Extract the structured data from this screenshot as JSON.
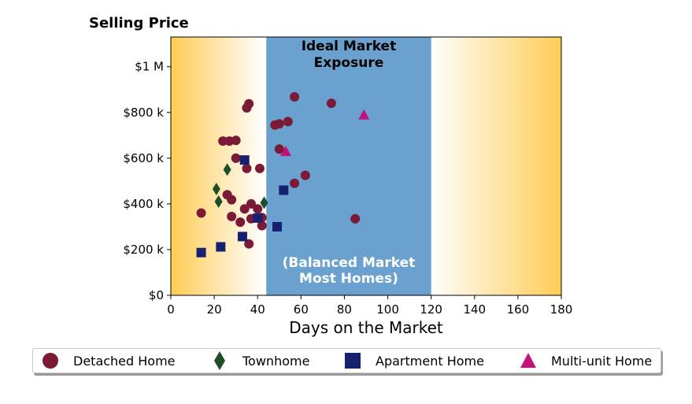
{
  "chart_data": {
    "type": "scatter",
    "title": "Selling Price",
    "xlabel": "Days on the Market",
    "ylabel": "",
    "xlim": [
      0,
      180
    ],
    "ylim": [
      0,
      1130000
    ],
    "xticks": [
      0,
      20,
      40,
      60,
      80,
      100,
      120,
      140,
      160,
      180
    ],
    "yticks": [
      {
        "value": 0,
        "label": "$0"
      },
      {
        "value": 200000,
        "label": "$200 k"
      },
      {
        "value": 400000,
        "label": "$400 k"
      },
      {
        "value": 600000,
        "label": "$600 k"
      },
      {
        "value": 800000,
        "label": "$800 k"
      },
      {
        "value": 1000000,
        "label": "$1 M"
      }
    ],
    "grid": false,
    "legend_position": "bottom",
    "background_gradient_color": "#ffcc55",
    "band": {
      "x_range": [
        44,
        120
      ],
      "color": "#6aa1cf",
      "label_top": [
        "Ideal Market",
        "Exposure"
      ],
      "label_bottom": [
        "(Balanced Market",
        "Most Homes)"
      ]
    },
    "series": [
      {
        "name": "Detached Home",
        "marker": "circle",
        "color": "#7b1a36",
        "points": [
          [
            14,
            360000
          ],
          [
            24,
            675000
          ],
          [
            27,
            675000
          ],
          [
            30,
            678000
          ],
          [
            35,
            820000
          ],
          [
            36,
            838000
          ],
          [
            26,
            440000
          ],
          [
            28,
            418000
          ],
          [
            28,
            345000
          ],
          [
            30,
            600000
          ],
          [
            35,
            555000
          ],
          [
            34,
            378000
          ],
          [
            32,
            320000
          ],
          [
            36,
            225000
          ],
          [
            37,
            400000
          ],
          [
            37,
            335000
          ],
          [
            40,
            378000
          ],
          [
            41,
            555000
          ],
          [
            42,
            340000
          ],
          [
            42,
            305000
          ],
          [
            48,
            745000
          ],
          [
            50,
            750000
          ],
          [
            50,
            640000
          ],
          [
            54,
            760000
          ],
          [
            57,
            868000
          ],
          [
            57,
            490000
          ],
          [
            62,
            525000
          ],
          [
            74,
            840000
          ],
          [
            85,
            335000
          ]
        ]
      },
      {
        "name": "Townhome",
        "marker": "diamond",
        "color": "#1f4e2b",
        "points": [
          [
            21,
            465000
          ],
          [
            22,
            410000
          ],
          [
            26,
            550000
          ],
          [
            43,
            405000
          ]
        ]
      },
      {
        "name": "Apartment Home",
        "marker": "square",
        "color": "#15206e",
        "points": [
          [
            14,
            187000
          ],
          [
            23,
            212000
          ],
          [
            33,
            257000
          ],
          [
            34,
            592000
          ],
          [
            40,
            338000
          ],
          [
            49,
            300000
          ],
          [
            52,
            460000
          ]
        ]
      },
      {
        "name": "Multi-unit Home",
        "marker": "triangle",
        "color": "#c2127b",
        "points": [
          [
            53,
            630000
          ],
          [
            89,
            790000
          ]
        ]
      }
    ]
  }
}
